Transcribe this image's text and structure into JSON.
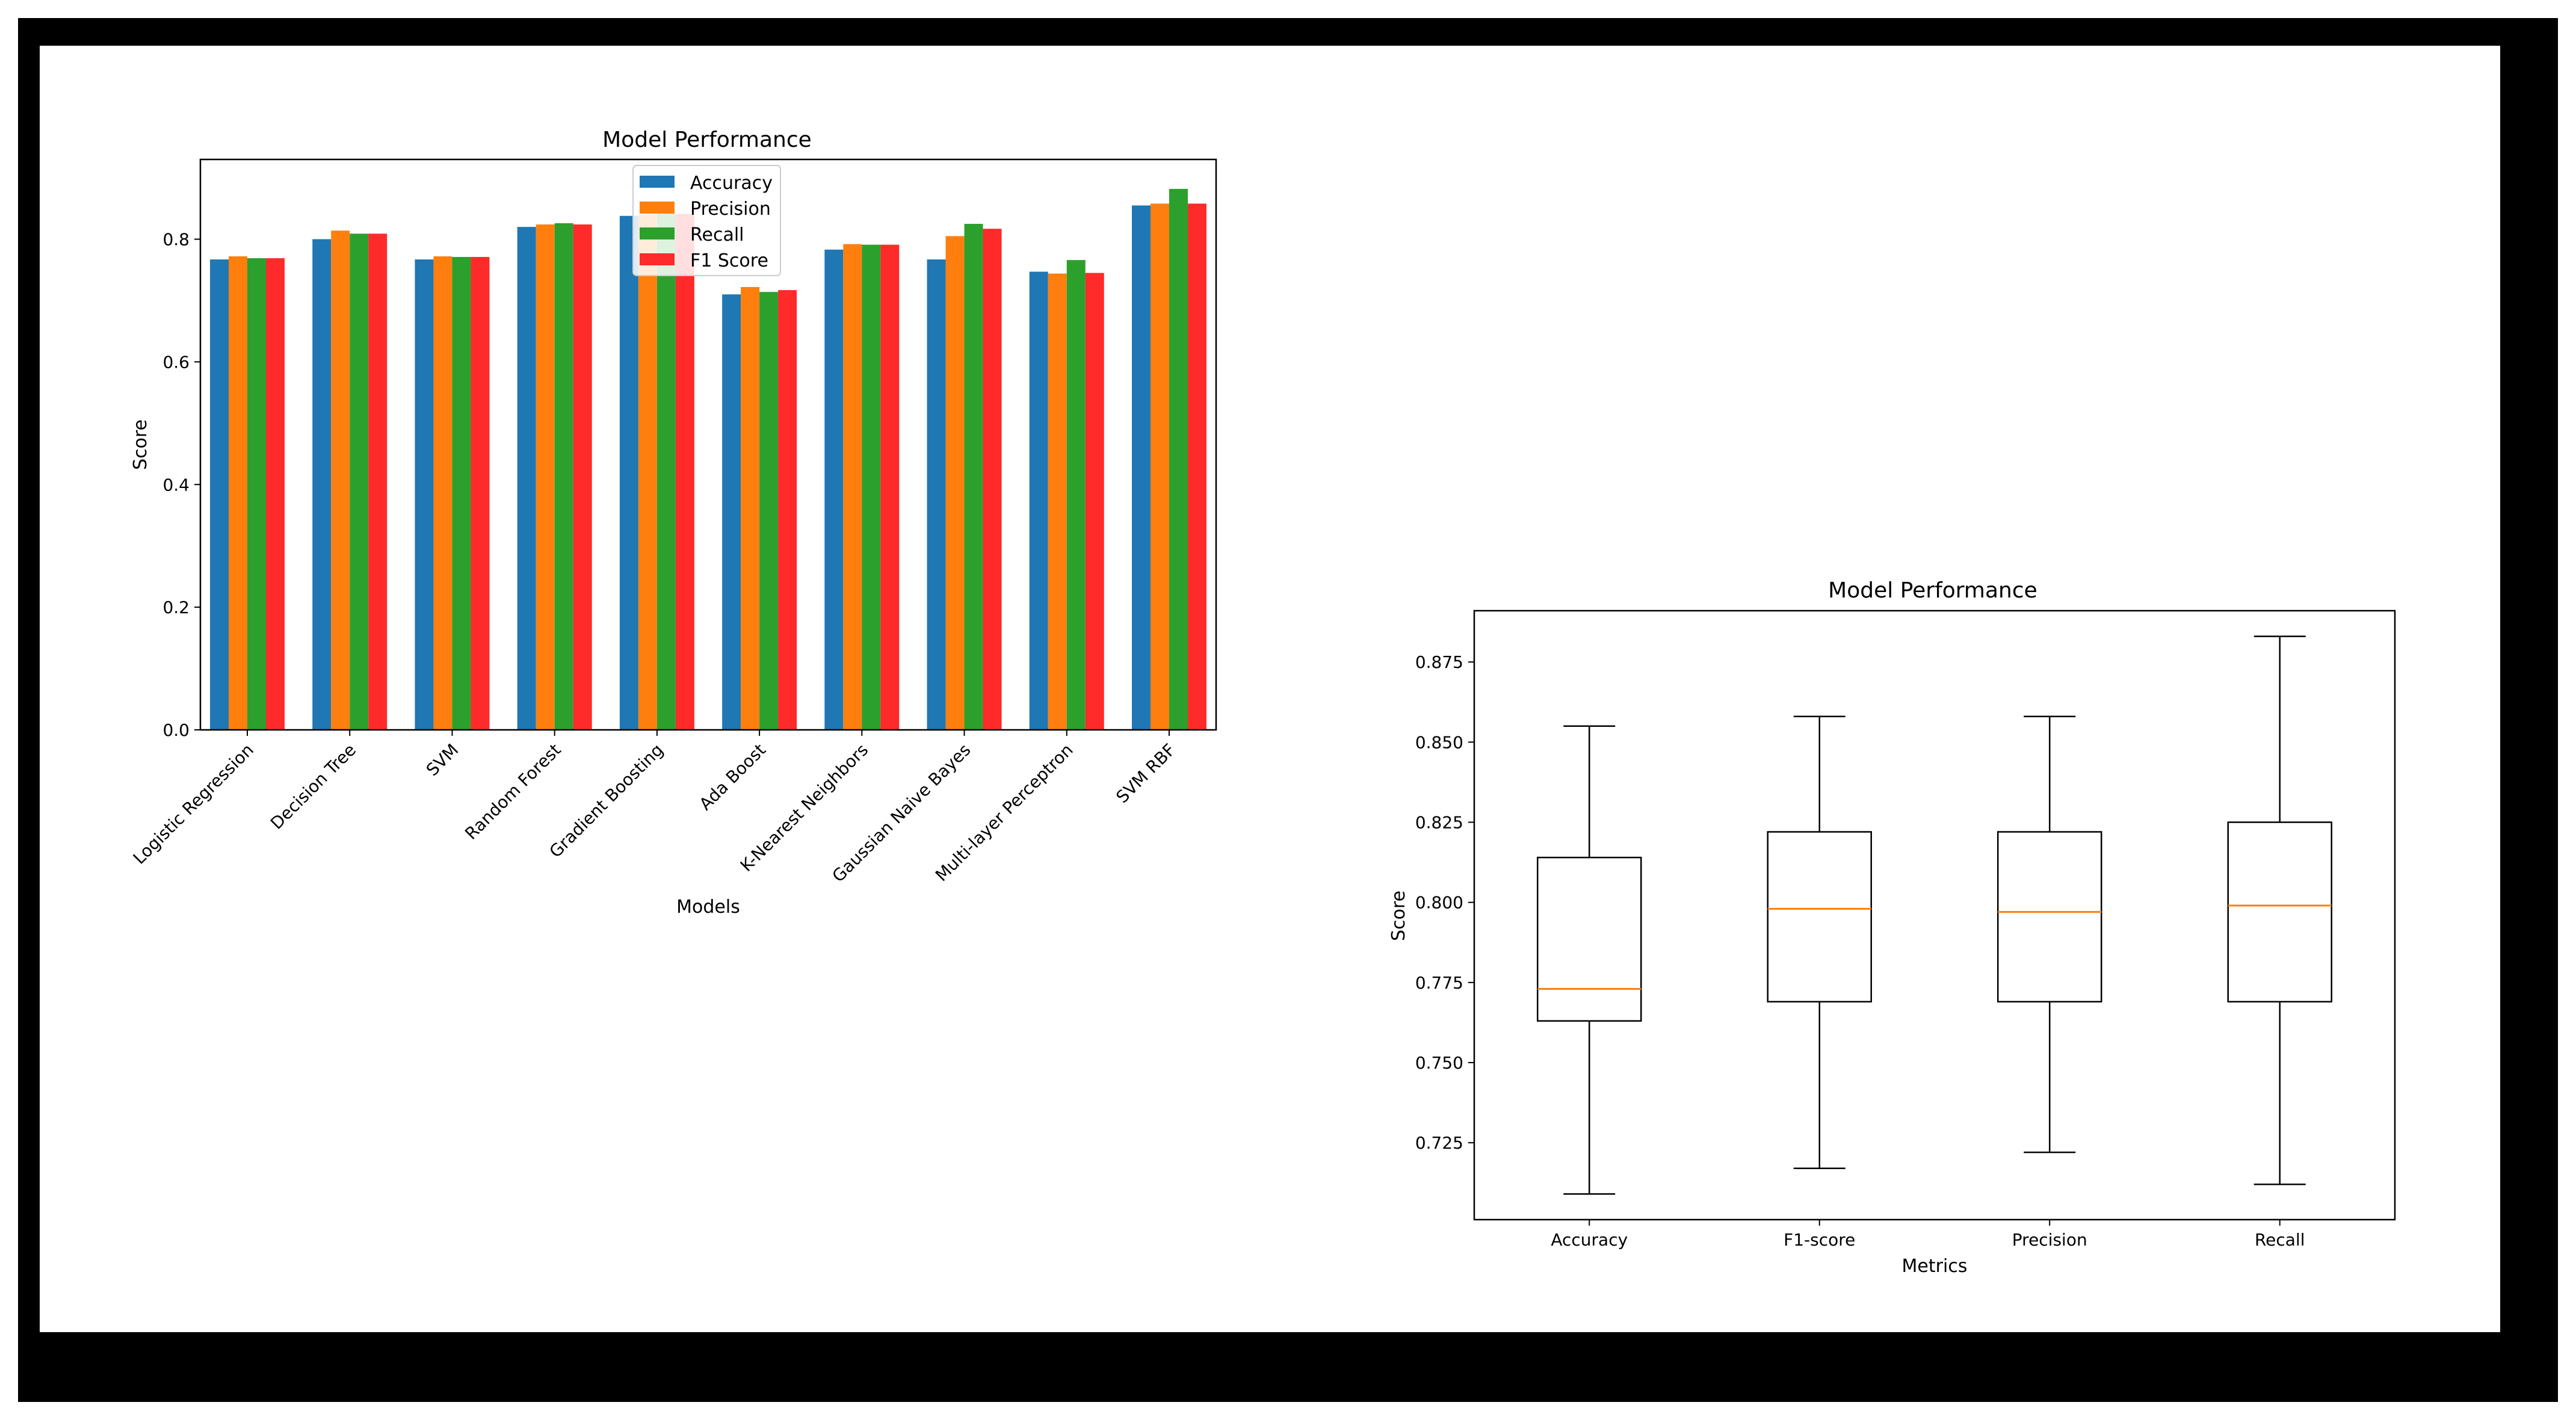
{
  "chart_data": [
    {
      "type": "bar",
      "title": "Model Performance",
      "xlabel": "Models",
      "ylabel": "Score",
      "ylim": [
        0,
        0.93
      ],
      "yticks": [
        "0.0",
        "0.2",
        "0.4",
        "0.6",
        "0.8"
      ],
      "legend_position": "top-center",
      "categories": [
        "Logistic Regression",
        "Decision Tree",
        "SVM",
        "Random Forest",
        "Gradient Boosting",
        "Ada Boost",
        "K-Nearest Neighbors",
        "Gaussian Naive Bayes",
        "Multi-layer Perceptron",
        "SVM RBF"
      ],
      "series": [
        {
          "name": "Accuracy",
          "color": "#1f77b4",
          "values": [
            0.767,
            0.8,
            0.767,
            0.82,
            0.838,
            0.71,
            0.783,
            0.767,
            0.747,
            0.855
          ]
        },
        {
          "name": "Precision",
          "color": "#ff7f0e",
          "values": [
            0.772,
            0.814,
            0.772,
            0.824,
            0.84,
            0.722,
            0.792,
            0.805,
            0.744,
            0.858
          ]
        },
        {
          "name": "Recall",
          "color": "#2ca02c",
          "values": [
            0.769,
            0.809,
            0.771,
            0.826,
            0.842,
            0.714,
            0.791,
            0.825,
            0.766,
            0.882
          ]
        },
        {
          "name": "F1 Score",
          "color": "#ff2a2a",
          "values": [
            0.769,
            0.809,
            0.771,
            0.824,
            0.841,
            0.717,
            0.791,
            0.817,
            0.745,
            0.858
          ]
        }
      ]
    },
    {
      "type": "box",
      "title": "Model Performance",
      "xlabel": "Metrics",
      "ylabel": "Score",
      "ylim": [
        0.701,
        0.891
      ],
      "yticks": [
        "0.725",
        "0.750",
        "0.775",
        "0.800",
        "0.825",
        "0.850",
        "0.875"
      ],
      "median_color": "#ff7f0e",
      "categories": [
        "Accuracy",
        "F1-score",
        "Precision",
        "Recall"
      ],
      "boxes": [
        {
          "min": 0.709,
          "q1": 0.763,
          "median": 0.773,
          "q3": 0.814,
          "max": 0.855
        },
        {
          "min": 0.717,
          "q1": 0.769,
          "median": 0.798,
          "q3": 0.822,
          "max": 0.858
        },
        {
          "min": 0.722,
          "q1": 0.769,
          "median": 0.797,
          "q3": 0.822,
          "max": 0.858
        },
        {
          "min": 0.712,
          "q1": 0.769,
          "median": 0.799,
          "q3": 0.825,
          "max": 0.883
        }
      ]
    }
  ]
}
